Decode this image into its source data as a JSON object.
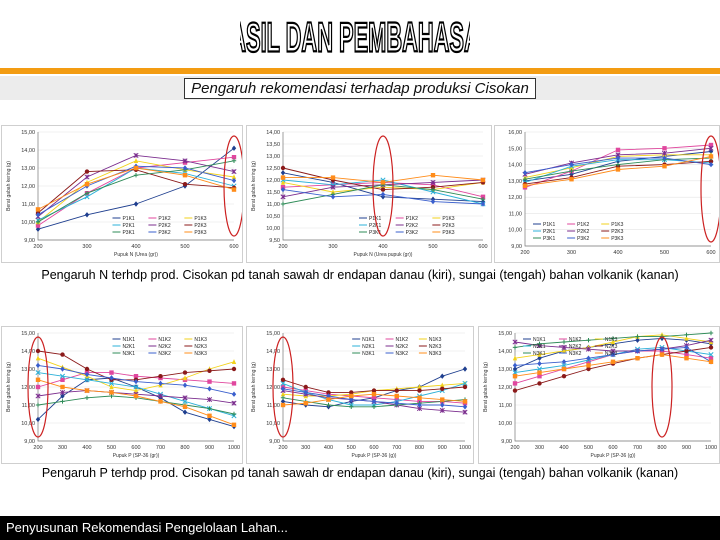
{
  "header": {
    "title": "HASIL DAN PEMBAHASAN",
    "subtitle": "Pengaruh rekomendasi terhadap produksi Cisokan"
  },
  "captions": {
    "row1": "Pengaruh N terhdp prod. Cisokan pd tanah sawah dr endapan danau (kiri), sungai (tengah) bahan volkanik (kanan)",
    "row2": "Pengaruh P terhdp prod. Cisokan pd tanah sawah dr endapan danau (kiri), sungai (tengah) bahan volkanik (kanan)"
  },
  "footer": {
    "text": "Penyusunan Rekomendasi Pengelolaan Lahan..."
  },
  "colors": {
    "accent": "#f39c12",
    "highlight": "#cc2222"
  },
  "chart_data": [
    {
      "type": "line",
      "x": [
        200,
        300,
        400,
        500,
        600
      ],
      "xlabel": "Pupuk N (Urea (gr))",
      "ylabel": "Berat gabah kering (g)",
      "ylim": [
        9.0,
        15.0
      ],
      "yticks": [
        "9,00",
        "10,00",
        "11,00",
        "12,00",
        "13,00",
        "14,00",
        "15,00"
      ],
      "highlight_x": 600,
      "series": [
        {
          "name": "P1K1",
          "values": [
            9.6,
            10.4,
            11.0,
            12.0,
            14.1
          ]
        },
        {
          "name": "P1K2",
          "values": [
            9.8,
            11.6,
            13.0,
            13.3,
            13.6
          ]
        },
        {
          "name": "P1K3",
          "values": [
            10.0,
            12.2,
            13.4,
            12.9,
            12.5
          ]
        },
        {
          "name": "P2K1",
          "values": [
            10.1,
            11.4,
            13.0,
            12.7,
            12.0
          ]
        },
        {
          "name": "P2K2",
          "values": [
            10.3,
            12.5,
            13.7,
            13.4,
            12.8
          ]
        },
        {
          "name": "P2K3",
          "values": [
            10.5,
            12.8,
            12.9,
            12.1,
            11.9
          ]
        },
        {
          "name": "P3K1",
          "values": [
            10.0,
            11.6,
            12.6,
            12.9,
            13.4
          ]
        },
        {
          "name": "P3K2",
          "values": [
            10.4,
            12.0,
            13.1,
            13.0,
            12.3
          ]
        },
        {
          "name": "P3K3",
          "values": [
            10.7,
            12.1,
            13.0,
            12.6,
            11.8
          ]
        }
      ]
    },
    {
      "type": "line",
      "x": [
        200,
        300,
        400,
        500,
        600
      ],
      "xlabel": "Pupuk N (Urea pupuk (gr))",
      "ylabel": "Berat gabah kering (g)",
      "ylim": [
        9.5,
        14.0
      ],
      "yticks": [
        "9,50",
        "10,00",
        "10,50",
        "11,00",
        "11,50",
        "12,00",
        "12,50",
        "13,00",
        "13,50",
        "14,00"
      ],
      "highlight_x": 400,
      "series": [
        {
          "name": "P1K1",
          "values": [
            12.3,
            11.9,
            11.3,
            11.2,
            11.1
          ]
        },
        {
          "name": "P1K2",
          "values": [
            11.7,
            11.8,
            11.9,
            11.8,
            11.3
          ]
        },
        {
          "name": "P1K3",
          "values": [
            11.9,
            11.5,
            11.7,
            11.6,
            11.9
          ]
        },
        {
          "name": "P2K1",
          "values": [
            12.0,
            11.8,
            12.0,
            11.5,
            11.0
          ]
        },
        {
          "name": "P2K2",
          "values": [
            11.3,
            11.7,
            11.8,
            11.9,
            12.0
          ]
        },
        {
          "name": "P2K3",
          "values": [
            12.5,
            12.0,
            11.6,
            11.7,
            11.9
          ]
        },
        {
          "name": "P3K1",
          "values": [
            11.0,
            11.4,
            11.8,
            11.6,
            11.2
          ]
        },
        {
          "name": "P3K2",
          "values": [
            11.6,
            11.3,
            11.4,
            11.1,
            11.0
          ]
        },
        {
          "name": "P3K3",
          "values": [
            12.1,
            12.1,
            11.9,
            12.2,
            12.0
          ]
        }
      ]
    },
    {
      "type": "line",
      "x": [
        200,
        300,
        400,
        500,
        600
      ],
      "xlabel": "",
      "ylabel": "",
      "ylim": [
        9.0,
        16.0
      ],
      "yticks": [
        "9,00",
        "10,00",
        "11,00",
        "12,00",
        "13,00",
        "14,00",
        "15,00",
        "16,00"
      ],
      "highlight_x": 600,
      "series": [
        {
          "name": "P1K1",
          "values": [
            13.0,
            13.4,
            14.2,
            14.5,
            14.8
          ]
        },
        {
          "name": "P1K2",
          "values": [
            12.6,
            13.6,
            14.9,
            15.0,
            15.2
          ]
        },
        {
          "name": "P1K3",
          "values": [
            13.2,
            13.8,
            14.5,
            14.6,
            14.6
          ]
        },
        {
          "name": "P2K1",
          "values": [
            12.9,
            13.9,
            14.3,
            14.3,
            14.1
          ]
        },
        {
          "name": "P2K2",
          "values": [
            13.4,
            14.1,
            14.6,
            14.7,
            15.0
          ]
        },
        {
          "name": "P2K3",
          "values": [
            12.8,
            13.2,
            13.9,
            14.0,
            14.2
          ]
        },
        {
          "name": "P3K1",
          "values": [
            13.1,
            13.6,
            14.0,
            14.3,
            14.4
          ]
        },
        {
          "name": "P3K2",
          "values": [
            13.5,
            14.0,
            14.4,
            14.4,
            14.0
          ]
        },
        {
          "name": "P3K3",
          "values": [
            12.7,
            13.1,
            13.7,
            13.9,
            14.5
          ]
        }
      ]
    },
    {
      "type": "line",
      "x": [
        200,
        300,
        400,
        500,
        600,
        700,
        800,
        900,
        1000
      ],
      "xlabel": "Pupuk P (SP-36 (gr))",
      "ylabel": "Berat gabah kering (g)",
      "ylim": [
        9.0,
        15.0
      ],
      "yticks": [
        "9,00",
        "10,00",
        "11,00",
        "12,00",
        "13,00",
        "14,00",
        "15,00"
      ],
      "highlight_x": 200,
      "series": [
        {
          "name": "N1K1",
          "values": [
            10.2,
            11.5,
            12.4,
            12.5,
            12.0,
            11.4,
            10.6,
            10.2,
            9.8
          ]
        },
        {
          "name": "N1K2",
          "values": [
            12.0,
            12.4,
            12.8,
            12.8,
            12.6,
            12.5,
            12.4,
            12.3,
            12.2
          ]
        },
        {
          "name": "N1K3",
          "values": [
            13.6,
            13.1,
            12.6,
            12.0,
            11.8,
            12.1,
            12.5,
            13.0,
            13.4
          ]
        },
        {
          "name": "N2K1",
          "values": [
            12.8,
            12.6,
            12.4,
            12.2,
            12.0,
            11.6,
            11.2,
            10.8,
            10.4
          ]
        },
        {
          "name": "N2K2",
          "values": [
            11.5,
            11.7,
            11.8,
            11.7,
            11.6,
            11.5,
            11.4,
            11.3,
            11.1
          ]
        },
        {
          "name": "N2K3",
          "values": [
            14.0,
            13.8,
            13.0,
            12.4,
            12.4,
            12.6,
            12.8,
            12.9,
            13.0
          ]
        },
        {
          "name": "N3K1",
          "values": [
            11.0,
            11.2,
            11.4,
            11.5,
            11.4,
            11.2,
            11.0,
            10.8,
            10.5
          ]
        },
        {
          "name": "N3K2",
          "values": [
            13.2,
            13.0,
            12.7,
            12.5,
            12.3,
            12.2,
            12.1,
            11.9,
            11.6
          ]
        },
        {
          "name": "N3K3",
          "values": [
            12.4,
            12.0,
            11.8,
            11.7,
            11.5,
            11.2,
            10.9,
            10.4,
            9.9
          ]
        }
      ]
    },
    {
      "type": "line",
      "x": [
        200,
        300,
        400,
        500,
        600,
        700,
        800,
        900,
        1000
      ],
      "xlabel": "Pupuk P (SP-36 (g))",
      "ylabel": "Berat gabah kering (g)",
      "ylim": [
        9.0,
        15.0
      ],
      "yticks": [
        "9,00",
        "10,00",
        "11,00",
        "12,00",
        "13,00",
        "14,00",
        "15,00"
      ],
      "highlight_x": 200,
      "series": [
        {
          "name": "N1K1",
          "values": [
            11.2,
            11.0,
            10.9,
            11.2,
            11.4,
            11.8,
            12.0,
            12.6,
            13.0
          ]
        },
        {
          "name": "N1K2",
          "values": [
            12.0,
            11.8,
            11.6,
            11.5,
            11.4,
            11.3,
            11.2,
            11.2,
            11.1
          ]
        },
        {
          "name": "N1K3",
          "values": [
            11.6,
            11.5,
            11.5,
            11.6,
            11.8,
            11.9,
            12.0,
            12.1,
            12.2
          ]
        },
        {
          "name": "N2K1",
          "values": [
            12.2,
            11.7,
            11.3,
            11.0,
            11.0,
            11.2,
            11.5,
            11.8,
            12.2
          ]
        },
        {
          "name": "N2K2",
          "values": [
            11.8,
            11.6,
            11.4,
            11.3,
            11.2,
            11.0,
            10.8,
            10.7,
            10.6
          ]
        },
        {
          "name": "N2K3",
          "values": [
            12.4,
            12.0,
            11.7,
            11.7,
            11.8,
            11.8,
            11.8,
            11.9,
            12.0
          ]
        },
        {
          "name": "N3K1",
          "values": [
            11.4,
            11.2,
            11.0,
            10.9,
            10.9,
            11.0,
            11.1,
            11.2,
            11.3
          ]
        },
        {
          "name": "N3K2",
          "values": [
            11.9,
            11.7,
            11.5,
            11.3,
            11.2,
            11.1,
            11.0,
            11.0,
            10.9
          ]
        },
        {
          "name": "N3K3",
          "values": [
            11.0,
            11.1,
            11.3,
            11.5,
            11.6,
            11.5,
            11.4,
            11.3,
            11.2
          ]
        }
      ]
    },
    {
      "type": "line",
      "x": [
        200,
        300,
        400,
        500,
        600,
        700,
        800,
        900,
        1000
      ],
      "xlabel": "Pupuk P (SP-36 (g))",
      "ylabel": "Berat gabah kering (g)",
      "ylim": [
        9.0,
        15.0
      ],
      "yticks": [
        "9,00",
        "10,00",
        "11,00",
        "12,00",
        "13,00",
        "14,00",
        "15,00"
      ],
      "highlight_x": 800,
      "series": [
        {
          "name": "N1K1",
          "values": [
            13.0,
            13.6,
            14.0,
            14.2,
            14.4,
            14.6,
            14.7,
            14.6,
            14.4
          ]
        },
        {
          "name": "N1K2",
          "values": [
            12.2,
            12.6,
            13.0,
            13.4,
            13.8,
            14.0,
            14.0,
            13.8,
            13.6
          ]
        },
        {
          "name": "N1K3",
          "values": [
            13.6,
            13.8,
            14.0,
            14.2,
            14.5,
            14.8,
            14.9,
            14.7,
            14.5
          ]
        },
        {
          "name": "N2K1",
          "values": [
            12.8,
            13.0,
            13.2,
            13.5,
            13.8,
            14.1,
            14.2,
            14.0,
            13.8
          ]
        },
        {
          "name": "N2K2",
          "values": [
            14.5,
            14.3,
            14.2,
            14.1,
            14.0,
            14.0,
            14.1,
            14.3,
            14.6
          ]
        },
        {
          "name": "N2K3",
          "values": [
            11.8,
            12.2,
            12.6,
            13.0,
            13.3,
            13.6,
            13.8,
            14.0,
            14.2
          ]
        },
        {
          "name": "N3K1",
          "values": [
            14.2,
            14.4,
            14.5,
            14.6,
            14.7,
            14.8,
            14.8,
            14.9,
            15.0
          ]
        },
        {
          "name": "N3K2",
          "values": [
            13.2,
            13.3,
            13.4,
            13.6,
            13.8,
            14.0,
            14.1,
            14.2,
            13.4
          ]
        },
        {
          "name": "N3K3",
          "values": [
            12.6,
            12.8,
            13.0,
            13.2,
            13.4,
            13.6,
            13.8,
            13.6,
            13.4
          ]
        }
      ]
    }
  ]
}
